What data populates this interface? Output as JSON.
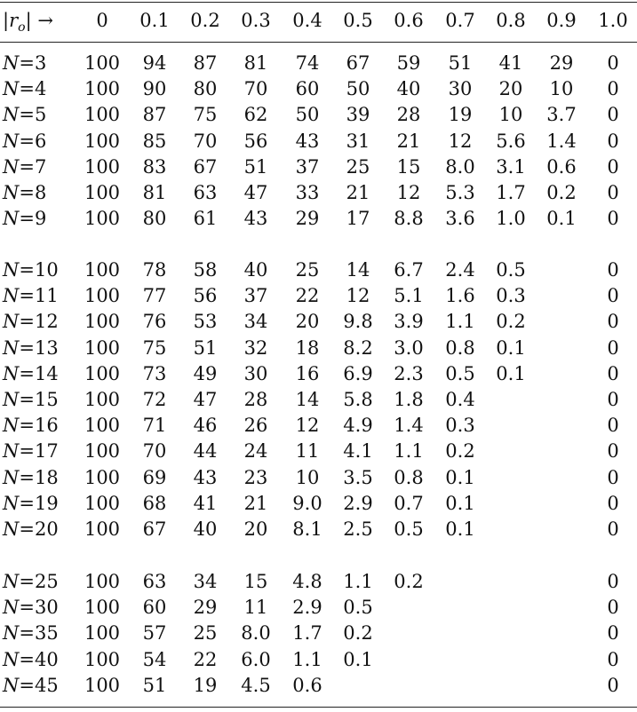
{
  "header": {
    "row_label_prefix": "|",
    "row_label_var": "r",
    "row_label_sub": "o",
    "row_label_suffix": "| →",
    "columns": [
      "0",
      "0.1",
      "0.2",
      "0.3",
      "0.4",
      "0.5",
      "0.6",
      "0.7",
      "0.8",
      "0.9",
      "1.0"
    ]
  },
  "groups": [
    {
      "rows": [
        {
          "n": "3",
          "values": [
            "100",
            "94",
            "87",
            "81",
            "74",
            "67",
            "59",
            "51",
            "41",
            "29",
            "0"
          ]
        },
        {
          "n": "4",
          "values": [
            "100",
            "90",
            "80",
            "70",
            "60",
            "50",
            "40",
            "30",
            "20",
            "10",
            "0"
          ]
        },
        {
          "n": "5",
          "values": [
            "100",
            "87",
            "75",
            "62",
            "50",
            "39",
            "28",
            "19",
            "10",
            "3.7",
            "0"
          ]
        },
        {
          "n": "6",
          "values": [
            "100",
            "85",
            "70",
            "56",
            "43",
            "31",
            "21",
            "12",
            "5.6",
            "1.4",
            "0"
          ]
        },
        {
          "n": "7",
          "values": [
            "100",
            "83",
            "67",
            "51",
            "37",
            "25",
            "15",
            "8.0",
            "3.1",
            "0.6",
            "0"
          ]
        },
        {
          "n": "8",
          "values": [
            "100",
            "81",
            "63",
            "47",
            "33",
            "21",
            "12",
            "5.3",
            "1.7",
            "0.2",
            "0"
          ]
        },
        {
          "n": "9",
          "values": [
            "100",
            "80",
            "61",
            "43",
            "29",
            "17",
            "8.8",
            "3.6",
            "1.0",
            "0.1",
            "0"
          ]
        }
      ]
    },
    {
      "rows": [
        {
          "n": "10",
          "values": [
            "100",
            "78",
            "58",
            "40",
            "25",
            "14",
            "6.7",
            "2.4",
            "0.5",
            "",
            "0"
          ]
        },
        {
          "n": "11",
          "values": [
            "100",
            "77",
            "56",
            "37",
            "22",
            "12",
            "5.1",
            "1.6",
            "0.3",
            "",
            "0"
          ]
        },
        {
          "n": "12",
          "values": [
            "100",
            "76",
            "53",
            "34",
            "20",
            "9.8",
            "3.9",
            "1.1",
            "0.2",
            "",
            "0"
          ]
        },
        {
          "n": "13",
          "values": [
            "100",
            "75",
            "51",
            "32",
            "18",
            "8.2",
            "3.0",
            "0.8",
            "0.1",
            "",
            "0"
          ]
        },
        {
          "n": "14",
          "values": [
            "100",
            "73",
            "49",
            "30",
            "16",
            "6.9",
            "2.3",
            "0.5",
            "0.1",
            "",
            "0"
          ]
        },
        {
          "n": "15",
          "values": [
            "100",
            "72",
            "47",
            "28",
            "14",
            "5.8",
            "1.8",
            "0.4",
            "",
            "",
            "0"
          ]
        },
        {
          "n": "16",
          "values": [
            "100",
            "71",
            "46",
            "26",
            "12",
            "4.9",
            "1.4",
            "0.3",
            "",
            "",
            "0"
          ]
        },
        {
          "n": "17",
          "values": [
            "100",
            "70",
            "44",
            "24",
            "11",
            "4.1",
            "1.1",
            "0.2",
            "",
            "",
            "0"
          ]
        },
        {
          "n": "18",
          "values": [
            "100",
            "69",
            "43",
            "23",
            "10",
            "3.5",
            "0.8",
            "0.1",
            "",
            "",
            "0"
          ]
        },
        {
          "n": "19",
          "values": [
            "100",
            "68",
            "41",
            "21",
            "9.0",
            "2.9",
            "0.7",
            "0.1",
            "",
            "",
            "0"
          ]
        },
        {
          "n": "20",
          "values": [
            "100",
            "67",
            "40",
            "20",
            "8.1",
            "2.5",
            "0.5",
            "0.1",
            "",
            "",
            "0"
          ]
        }
      ]
    },
    {
      "rows": [
        {
          "n": "25",
          "values": [
            "100",
            "63",
            "34",
            "15",
            "4.8",
            "1.1",
            "0.2",
            "",
            "",
            "",
            "0"
          ]
        },
        {
          "n": "30",
          "values": [
            "100",
            "60",
            "29",
            "11",
            "2.9",
            "0.5",
            "",
            "",
            "",
            "",
            "0"
          ]
        },
        {
          "n": "35",
          "values": [
            "100",
            "57",
            "25",
            "8.0",
            "1.7",
            "0.2",
            "",
            "",
            "",
            "",
            "0"
          ]
        },
        {
          "n": "40",
          "values": [
            "100",
            "54",
            "22",
            "6.0",
            "1.1",
            "0.1",
            "",
            "",
            "",
            "",
            "0"
          ]
        },
        {
          "n": "45",
          "values": [
            "100",
            "51",
            "19",
            "4.5",
            "0.6",
            "",
            "",
            "",
            "",
            "",
            "0"
          ]
        }
      ]
    }
  ],
  "row_label_var_n": "N",
  "row_label_eq": "="
}
